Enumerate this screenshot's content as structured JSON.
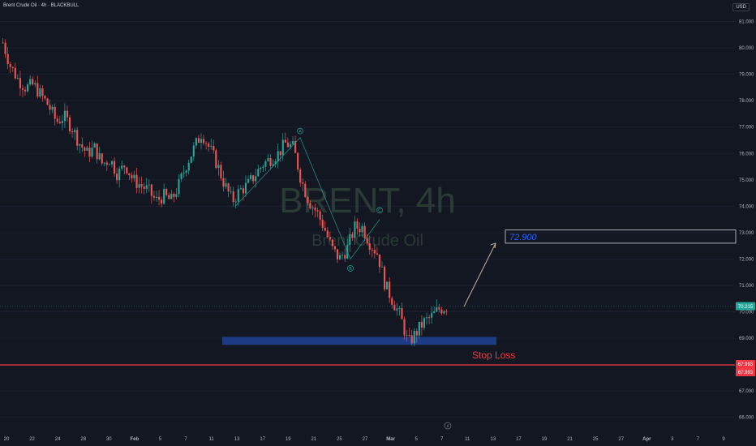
{
  "header": {
    "symbol_title": "Brent Crude Oil · 4h · BLACKBULL",
    "currency_badge": "USD"
  },
  "watermark": {
    "symbol": "BRENT, 4h",
    "name": "Brent Crude Oil"
  },
  "colors": {
    "background": "#131722",
    "up_candle": "#26a69a",
    "down_candle": "#ef5350",
    "zone": "#1e3f8f",
    "stop_loss": "#f23645",
    "target_text": "#2962ff",
    "last_price": "#26a69a",
    "axis_text": "#b2b5be",
    "pattern_line": "#26a69a",
    "arrow": "#c9b8a8"
  },
  "chart_data": {
    "type": "candlestick",
    "y_ticks": [
      "81.000",
      "80.000",
      "79.000",
      "78.000",
      "77.000",
      "76.000",
      "75.000",
      "74.000",
      "73.000",
      "72.000",
      "71.000",
      "70.000",
      "69.000",
      "68.000",
      "67.000",
      "66.000"
    ],
    "ylim": [
      65.9,
      81.2
    ],
    "x_ticks": [
      "20",
      "22",
      "24",
      "28",
      "30",
      "Feb",
      "5",
      "7",
      "11",
      "13",
      "17",
      "19",
      "21",
      "25",
      "27",
      "Mar",
      "5",
      "7",
      "11",
      "13",
      "17",
      "19",
      "21",
      "25",
      "27",
      "Apr",
      "3",
      "7",
      "9"
    ],
    "close_path": [
      80.2,
      79.3,
      78.8,
      78.5,
      78.6,
      78.2,
      77.8,
      77.2,
      77.4,
      77.0,
      76.4,
      76.0,
      76.2,
      75.6,
      75.8,
      75.2,
      75.6,
      75.0,
      74.8,
      74.6,
      74.2,
      74.4,
      74.2,
      74.8,
      75.6,
      76.2,
      76.8,
      76.2,
      75.6,
      74.8,
      74.2,
      74.6,
      74.8,
      75.2,
      75.6,
      75.8,
      76.0,
      76.4,
      76.2,
      75.0,
      74.2,
      73.8,
      73.2,
      72.4,
      72.0,
      72.4,
      73.2,
      73.2,
      72.6,
      72.2,
      71.0,
      70.4,
      69.8,
      68.8,
      69.2,
      69.6,
      69.8,
      70.1,
      70.2
    ],
    "annotations": {
      "target_label": "72.900",
      "stop_loss_label": "Stop Loss",
      "stop_loss_price": 67.99,
      "stop_loss_tag_a": "67.993",
      "stop_loss_tag_b": "67.993",
      "last_price": 70.215,
      "last_price_tag": "70.215",
      "wave_a": "A",
      "wave_b": "B",
      "wave_c": "C",
      "event_marker": "⚡",
      "zone_low": 68.75,
      "zone_high": 69.05,
      "target_box_low": 72.6,
      "target_box_high": 73.1
    }
  }
}
